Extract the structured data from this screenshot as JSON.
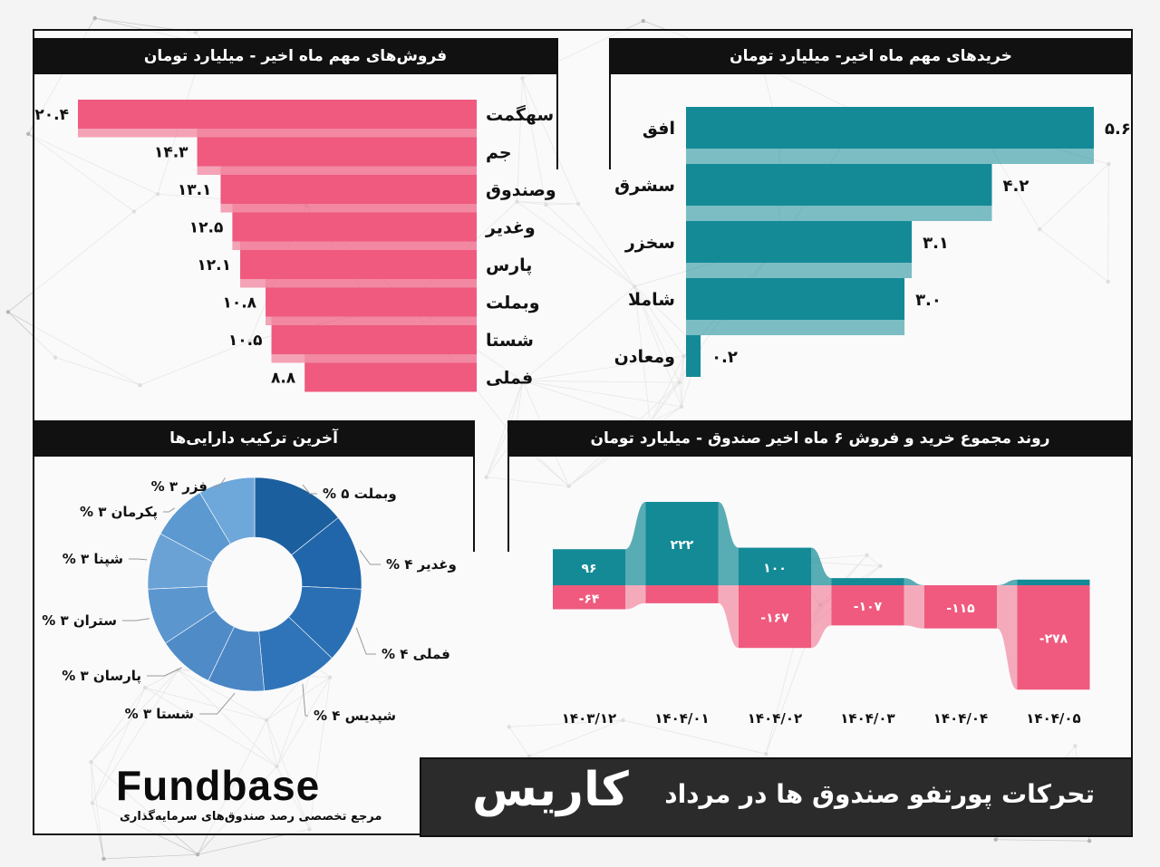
{
  "sales_panel": {
    "title": "فروش‌های مهم ماه اخیر - میلیارد تومان"
  },
  "buys_panel": {
    "title": "خریدهای مهم ماه اخیر- میلیارد تومان"
  },
  "assets_panel": {
    "title": "آخرین ترکیب دارایی‌ها"
  },
  "trend_panel": {
    "title": "روند مجموع خرید و فروش ۶ ماه اخیر صندوق - میلیارد تومان"
  },
  "footer": {
    "title": "تحرکات پورتفو صندوق ها در مرداد",
    "fund_name": "کاریس",
    "logo_text": "Fundbase",
    "logo_subtitle": "مرجع تخصصی رصد صندوق‌های سرمایه‌گذاری"
  },
  "colors": {
    "sell": "#ef5a7e",
    "buy": "#138a96",
    "donut_dark": "#1d64a8",
    "donut_light": "#5b9bd1"
  },
  "chart_data": [
    {
      "type": "bar",
      "title": "فروش‌های مهم ماه اخیر - میلیارد تومان",
      "categories": [
        "سهگمت",
        "جم",
        "وصندوق",
        "وغدیر",
        "پارس",
        "وبملت",
        "شستا",
        "فملی"
      ],
      "values": [
        20.4,
        14.3,
        13.1,
        12.5,
        12.1,
        10.8,
        10.5,
        8.8
      ],
      "labels": [
        "۲۰.۴",
        "۱۴.۳",
        "۱۳.۱",
        "۱۲.۵",
        "۱۲.۱",
        "۱۰.۸",
        "۱۰.۵",
        "۸.۸"
      ]
    },
    {
      "type": "bar",
      "title": "خریدهای مهم ماه اخیر- میلیارد تومان",
      "categories": [
        "افق",
        "سشرق",
        "سخزر",
        "شاملا",
        "ومعادن"
      ],
      "values": [
        5.6,
        4.2,
        3.1,
        3.0,
        0.2
      ],
      "labels": [
        "۵.۶",
        "۴.۲",
        "۳.۱",
        "۳.۰",
        "۰.۲"
      ]
    },
    {
      "type": "pie",
      "title": "آخرین ترکیب دارایی‌ها",
      "categories": [
        "وبملت",
        "وغدیر",
        "فملی",
        "شپدیس",
        "شستا",
        "پارسان",
        "ستران",
        "شپنا",
        "پکرمان",
        "فزر"
      ],
      "values": [
        5,
        4,
        4,
        4,
        3,
        3,
        3,
        3,
        3,
        3
      ],
      "labels": [
        "% ۵ وبملت",
        "% ۴ وغدیر",
        "% ۴ فملی",
        "% ۴ شپدیس",
        "% ۳ شستا",
        "% ۳ پارسان",
        "% ۳ ستران",
        "% ۳ شپنا",
        "% ۳ پکرمان",
        "% ۳ فزر"
      ]
    },
    {
      "type": "bar",
      "title": "روند مجموع خرید و فروش ۶ ماه اخیر صندوق - میلیارد تومان",
      "categories": [
        "۱۴۰۳/۱۲",
        "۱۴۰۴/۰۱",
        "۱۴۰۴/۰۲",
        "۱۴۰۴/۰۳",
        "۱۴۰۴/۰۴",
        "۱۴۰۴/۰۵"
      ],
      "series": [
        {
          "values": [
            96,
            222,
            100,
            19,
            0,
            15
          ],
          "labels": [
            "۹۶",
            "۲۲۲",
            "۱۰۰",
            "",
            "",
            ""
          ]
        },
        {
          "values": [
            -64,
            -48,
            -167,
            -107,
            -115,
            -278
          ],
          "labels": [
            "-۶۴",
            "",
            "-۱۶۷",
            "-۱۰۷",
            "-۱۱۵",
            "-۲۷۸"
          ]
        }
      ]
    }
  ]
}
